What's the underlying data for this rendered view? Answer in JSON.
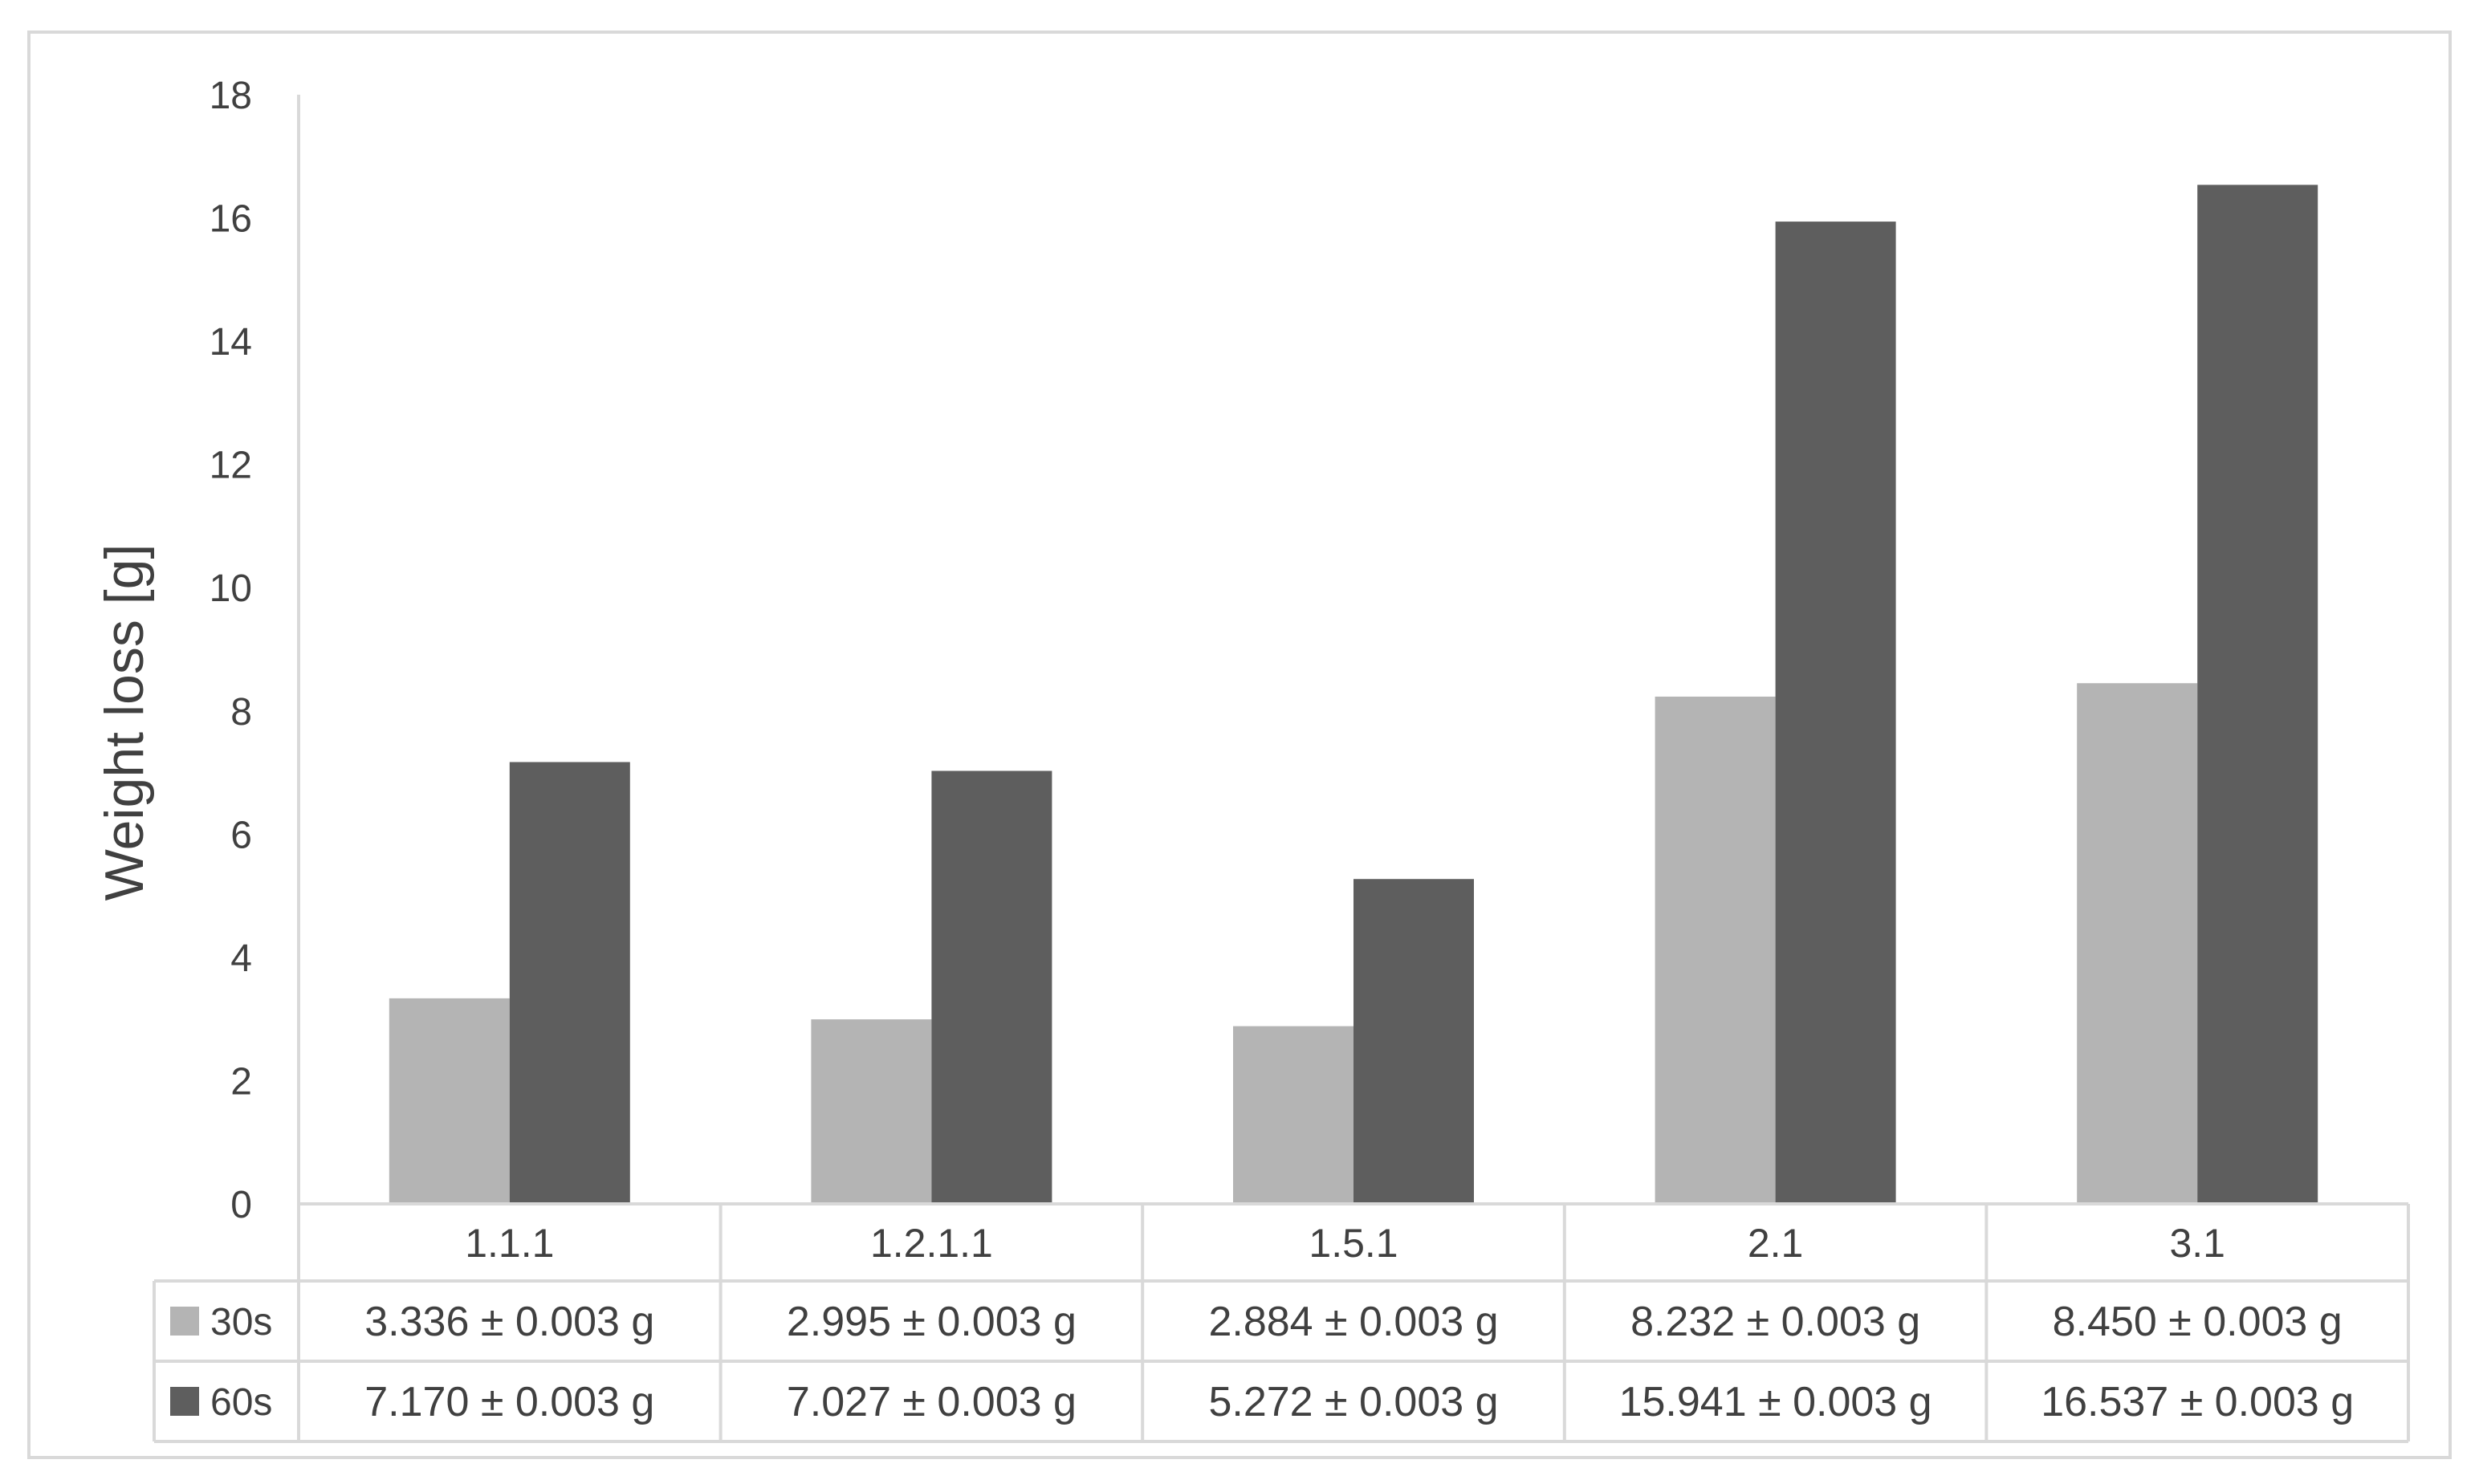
{
  "chart_data": {
    "type": "bar",
    "title": "",
    "xlabel": "",
    "ylabel": "Weight loss [g]",
    "ylim": [
      0,
      18
    ],
    "yticks": [
      0,
      2,
      4,
      6,
      8,
      10,
      12,
      14,
      16,
      18
    ],
    "grid": false,
    "categories": [
      "1.1.1",
      "1.2.1.1",
      "1.5.1",
      "2.1",
      "3.1"
    ],
    "series": [
      {
        "name": "30s",
        "color": "#b4b4b4",
        "values": [
          3.336,
          2.995,
          2.884,
          8.232,
          8.45
        ],
        "labels": [
          "3.336 ± 0.003 g",
          "2.995 ± 0.003 g",
          "2.884 ± 0.003 g",
          "8.232 ± 0.003 g",
          "8.450 ± 0.003 g"
        ]
      },
      {
        "name": "60s",
        "color": "#5e5e5e",
        "values": [
          7.17,
          7.027,
          5.272,
          15.941,
          16.537
        ],
        "labels": [
          "7.170 ± 0.003 g",
          "7.027 ± 0.003 g",
          "5.272 ± 0.003 g",
          "15.941 ± 0.003 g",
          "16.537 ± 0.003 g"
        ]
      }
    ],
    "legend": "data-table"
  }
}
